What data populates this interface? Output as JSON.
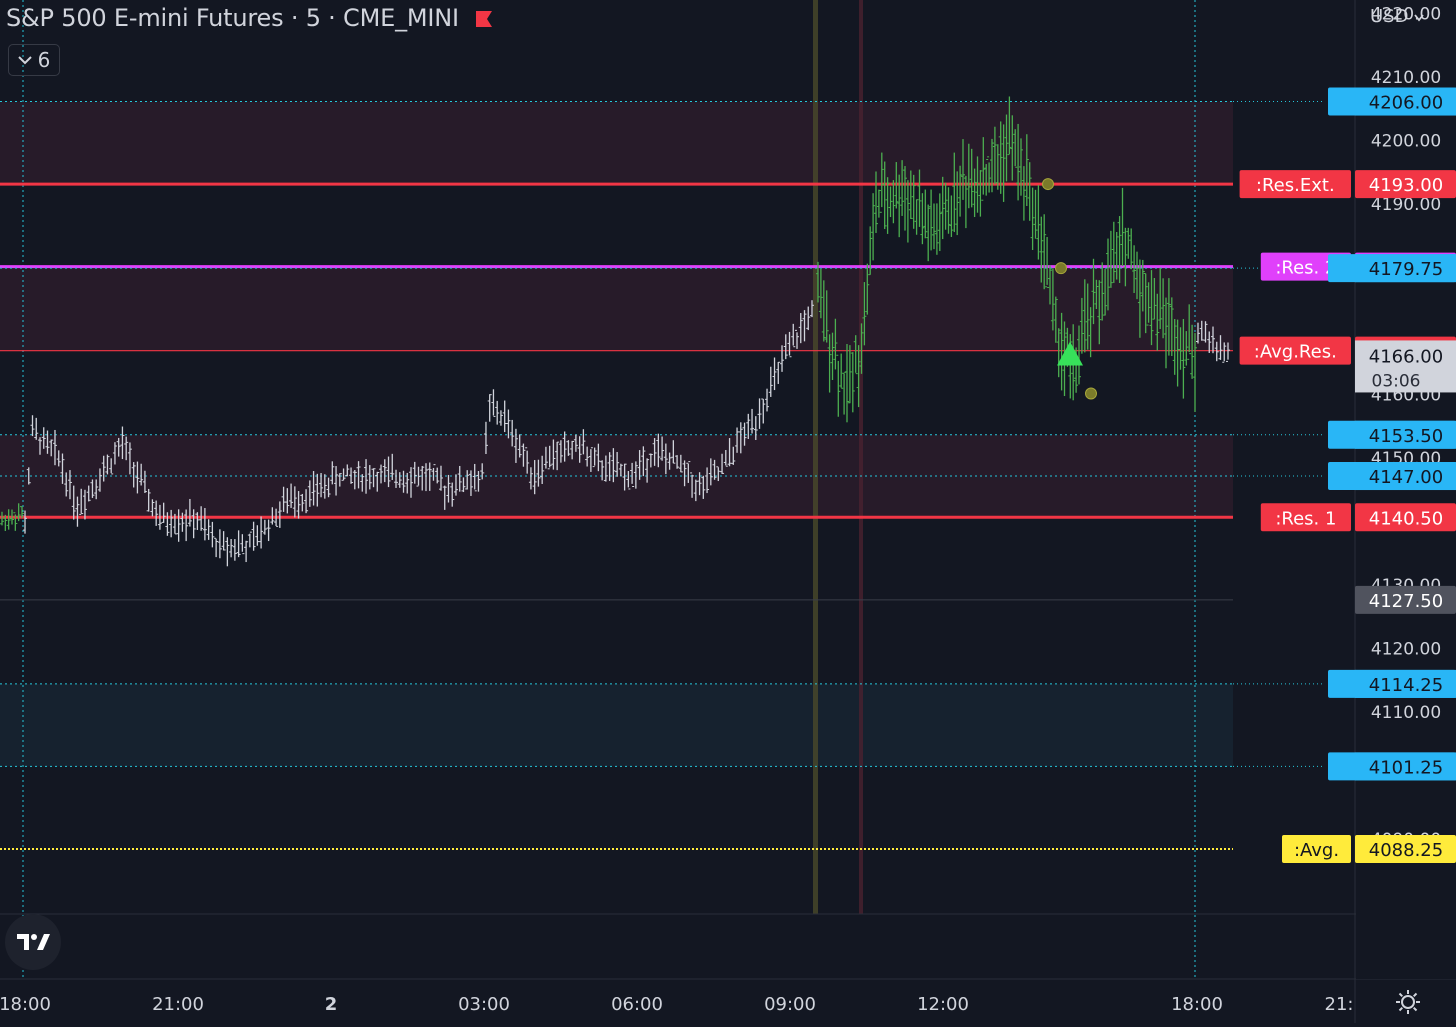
{
  "header": {
    "title": "S&P 500 E-mini Futures · 5 · CME_MINI",
    "indicator_count": "6",
    "currency": "USD"
  },
  "icons": {
    "flag": "flag-icon",
    "collapse": "chevron-down-icon",
    "currency": "chevron-down-icon",
    "logo": "tradingview-logo-icon",
    "settings": "gear-icon"
  },
  "colors": {
    "background": "#131722",
    "bar_up_session": "#4caf50",
    "bar_overnight": "#d1d4dc",
    "resistance": "#f23645",
    "res2": "#e040fb",
    "level_line": "#26c6da",
    "avg": "#ffeb3b",
    "signal": "#37e05a"
  },
  "chart_data": {
    "type": "bar",
    "ylim": [
      4078,
      4222
    ],
    "y_ticks": [
      "4220.00",
      "4210.00",
      "4200.00",
      "4190.00",
      "4160.00",
      "4150.00",
      "4130.00",
      "4120.00",
      "4110.00",
      "4090.00"
    ],
    "x_ticks": [
      "18:00",
      "21:00",
      "2",
      "03:00",
      "06:00",
      "09:00",
      "12:00",
      "18:00",
      "21:"
    ],
    "last_price": {
      "value": "4166.00",
      "countdown": "03:06"
    },
    "levels": [
      {
        "price": "4206.00",
        "style": "level"
      },
      {
        "price": "4193.00",
        "label": ":Res.Ext.",
        "style": "res"
      },
      {
        "price": "4180.00",
        "label": ":Res. 2",
        "style": "res2"
      },
      {
        "price": "4179.75",
        "style": "level"
      },
      {
        "price": "4166.75",
        "label": ":Avg.Res.",
        "style": "res"
      },
      {
        "price": "4153.50",
        "style": "level"
      },
      {
        "price": "4147.00",
        "style": "level"
      },
      {
        "price": "4140.50",
        "label": ":Res. 1",
        "style": "res"
      },
      {
        "price": "4127.50",
        "style": "gray"
      },
      {
        "price": "4114.25",
        "style": "level"
      },
      {
        "price": "4101.25",
        "style": "level"
      },
      {
        "price": "4088.25",
        "label": ":Avg.",
        "style": "avg"
      }
    ],
    "waypoints_overnight": [
      [
        0,
        4140
      ],
      [
        2,
        4154
      ],
      [
        9,
        4150
      ],
      [
        14,
        4142
      ],
      [
        26,
        4152
      ],
      [
        30,
        4147
      ],
      [
        36,
        4140
      ],
      [
        46,
        4140
      ],
      [
        52,
        4136
      ],
      [
        60,
        4136
      ],
      [
        70,
        4143
      ],
      [
        76,
        4144
      ],
      [
        84,
        4147
      ],
      [
        108,
        4147
      ],
      [
        112,
        4145
      ],
      [
        122,
        4147
      ],
      [
        124,
        4158
      ],
      [
        128,
        4156
      ],
      [
        136,
        4147
      ],
      [
        140,
        4150
      ],
      [
        148,
        4152
      ],
      [
        152,
        4149
      ],
      [
        162,
        4147
      ],
      [
        168,
        4151
      ],
      [
        174,
        4149
      ],
      [
        180,
        4145
      ],
      [
        186,
        4148
      ],
      [
        190,
        4152
      ],
      [
        195,
        4156
      ],
      [
        203,
        4166
      ],
      [
        210,
        4173
      ]
    ],
    "waypoints_session": [
      [
        0,
        4175
      ],
      [
        10,
        4160
      ],
      [
        15,
        4168
      ],
      [
        20,
        4190
      ],
      [
        30,
        4192
      ],
      [
        40,
        4185
      ],
      [
        50,
        4193
      ],
      [
        60,
        4195
      ],
      [
        66,
        4200
      ],
      [
        72,
        4193
      ],
      [
        78,
        4183
      ],
      [
        82,
        4170
      ],
      [
        88,
        4163
      ],
      [
        92,
        4170
      ],
      [
        100,
        4178
      ],
      [
        106,
        4185
      ],
      [
        112,
        4176
      ],
      [
        118,
        4173
      ],
      [
        124,
        4169
      ],
      [
        130,
        4166
      ]
    ],
    "markers": [
      {
        "type": "circle",
        "bar_x": 1048,
        "price": 4193
      },
      {
        "type": "circle",
        "bar_x": 1061,
        "price": 4179.75
      },
      {
        "type": "circle",
        "bar_x": 1091,
        "price": 4160
      },
      {
        "type": "triangle-up",
        "bar_x": 1070,
        "price": 4166
      }
    ]
  }
}
